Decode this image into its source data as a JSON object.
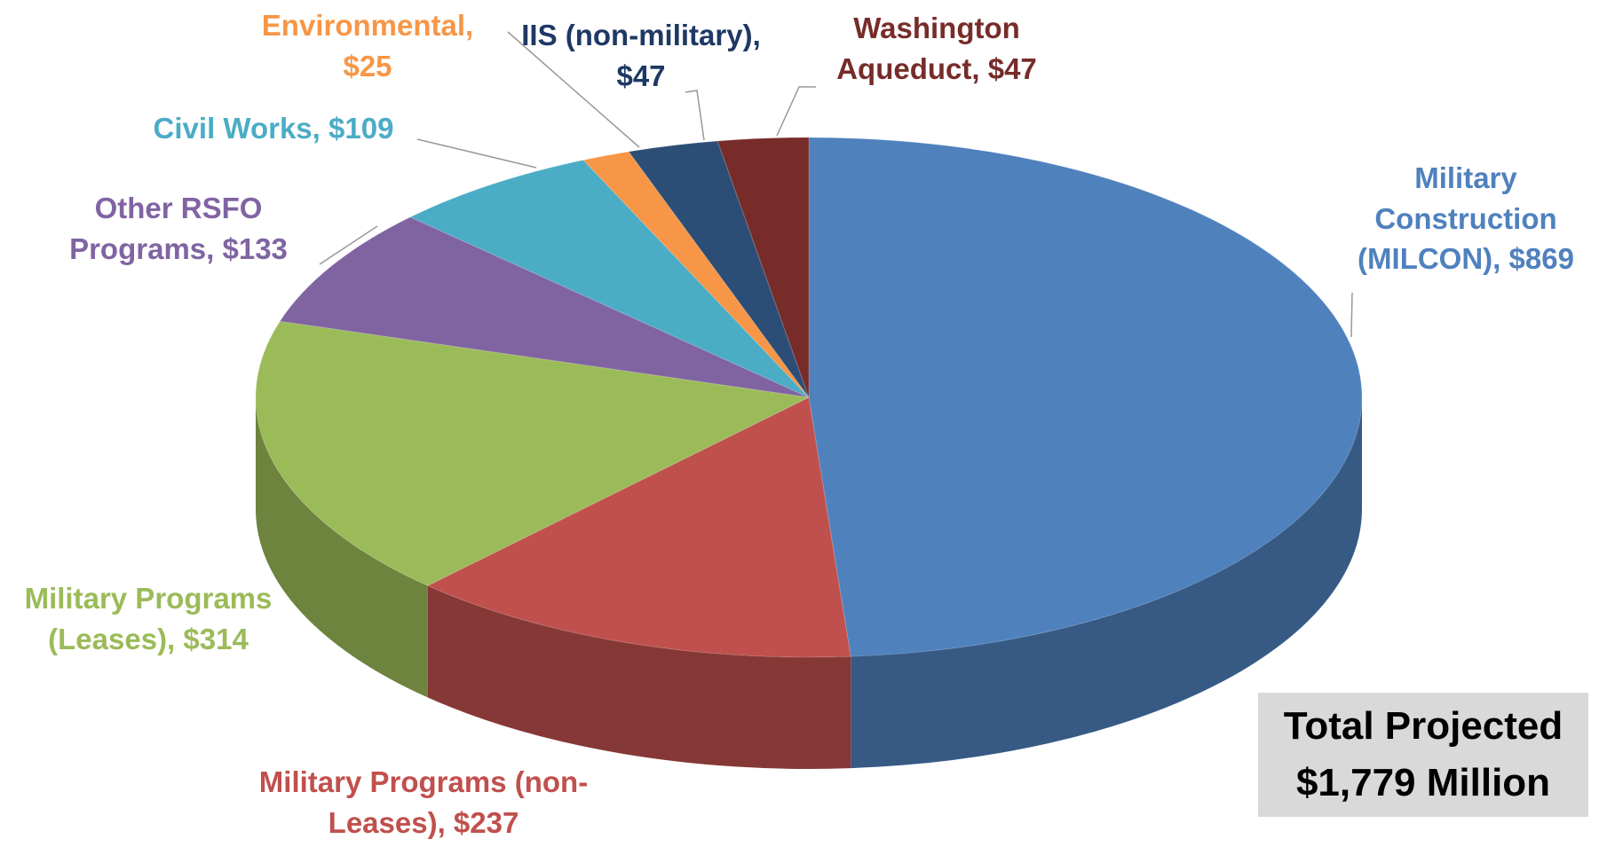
{
  "chart_data": {
    "type": "pie",
    "categories": [
      "Military Construction (MILCON),",
      "Military Programs (non-Leases),",
      "Military Programs (Leases),",
      "Other RSFO Programs,",
      "Civil Works,",
      "Environmental,",
      "IIS (non-military),",
      "Washington Aqueduct,"
    ],
    "values": [
      869,
      237,
      314,
      133,
      109,
      25,
      47,
      47
    ],
    "value_labels": [
      "$869",
      "$237",
      "$314",
      "$133",
      "$109",
      "$25",
      "$47",
      "$47"
    ],
    "colors": [
      "#4f81bd",
      "#c0504d",
      "#9bbb59",
      "#8064a2",
      "#4bacc6",
      "#f79646",
      "#2c4d75",
      "#772c2a"
    ],
    "annotations": [
      "Total Projected",
      "$1,779  Million"
    ]
  }
}
